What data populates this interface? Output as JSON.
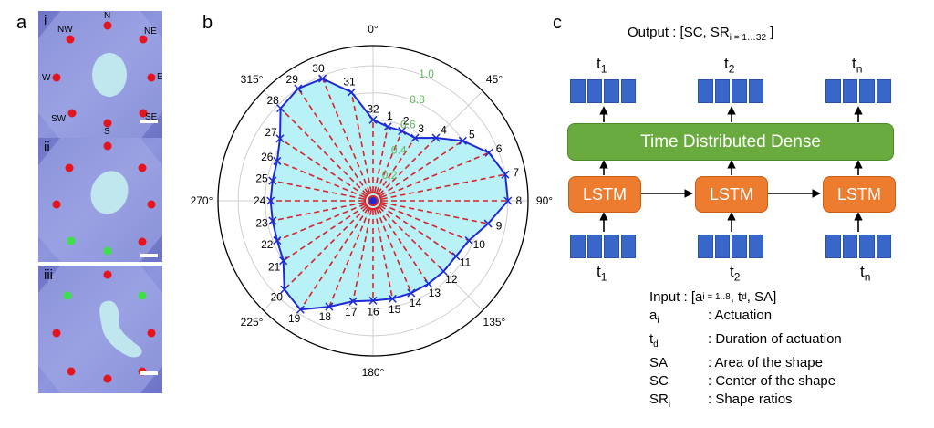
{
  "panel_a": {
    "letter": "a",
    "panels": [
      {
        "roman": "i",
        "labels": {
          "N": "N",
          "NE": "NE",
          "E": "E",
          "SE": "SE",
          "S": "S",
          "SW": "SW",
          "W": "W",
          "NW": "NW"
        }
      },
      {
        "roman": "ii"
      },
      {
        "roman": "iii"
      }
    ],
    "colors": {
      "red": "#e3151f",
      "green": "#3ee04a",
      "background": "#7b82d0",
      "shape": "#c7f3f0"
    }
  },
  "panel_b": {
    "letter": "b",
    "chart_data": {
      "type": "radar",
      "angle_ticks": [
        "0°",
        "45°",
        "90°",
        "135°",
        "180°",
        "225°",
        "270°",
        "315°"
      ],
      "radial_ticks": [
        "1.0",
        "0.8",
        "0.6",
        "0.4",
        "0.2"
      ],
      "point_labels": [
        "1",
        "2",
        "3",
        "4",
        "5",
        "6",
        "7",
        "8",
        "9",
        "10",
        "11",
        "12",
        "13",
        "14",
        "15",
        "16",
        "17",
        "18",
        "19",
        "20",
        "21",
        "22",
        "23",
        "24",
        "25",
        "26",
        "27",
        "28",
        "29",
        "30",
        "31",
        "32"
      ],
      "values": [
        0.56,
        0.56,
        0.56,
        0.66,
        0.8,
        0.93,
        1.0,
        1.0,
        0.87,
        0.77,
        0.74,
        0.74,
        0.74,
        0.74,
        0.74,
        0.74,
        0.76,
        0.85,
        0.97,
        0.93,
        0.8,
        0.77,
        0.76,
        0.76,
        0.76,
        0.77,
        0.83,
        0.97,
        1.0,
        0.98,
        0.82,
        0.6
      ],
      "colors": {
        "fill": "#b8f1f6",
        "outline": "#1d2bd6",
        "markers": "#1d2bd6",
        "spokes": "#d7232b",
        "radial_labels": "#5fb85b"
      }
    }
  },
  "panel_c": {
    "letter": "c",
    "output": {
      "text": "Output : [SC, SR",
      "sub": "i = 1…32",
      "end": " ]"
    },
    "time_labels": [
      {
        "base": "t",
        "sub": "1"
      },
      {
        "base": "t",
        "sub": "2"
      },
      {
        "base": "t",
        "sub": "n"
      }
    ],
    "dense_label": "Time Distributed Dense",
    "lstm_label": "LSTM",
    "input": {
      "text": "Input  : [a",
      "sub1": "i = 1..8",
      "mid": ", t",
      "sub2": "d",
      "end": ", SA]"
    },
    "legend": [
      {
        "key": "a",
        "sub": "i",
        "desc": ": Actuation"
      },
      {
        "key": "t",
        "sub": "d",
        "desc": ": Duration of actuation"
      },
      {
        "key": "SA",
        "sub": "",
        "desc": ": Area of the shape"
      },
      {
        "key": "SC",
        "sub": "",
        "desc": ": Center of the shape"
      },
      {
        "key": "SR",
        "sub": "i",
        "desc": ": Shape ratios"
      }
    ],
    "colors": {
      "vector": "#3867c9",
      "dense": "#6aab3f",
      "lstm": "#ee7c2f"
    }
  }
}
